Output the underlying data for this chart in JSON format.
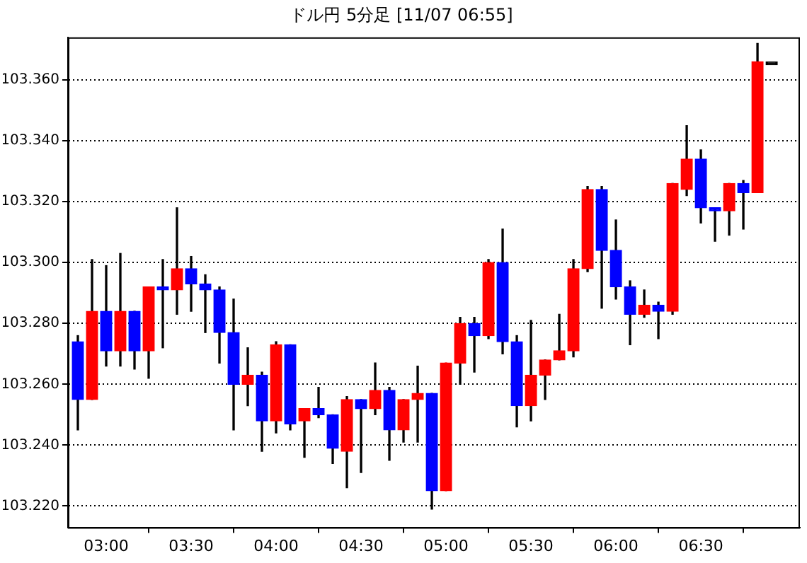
{
  "chart_data": {
    "type": "candlestick",
    "title": "ドル円 5分足 [11/07 06:55]",
    "x": [
      2.8333,
      2.9167,
      3,
      3.0833,
      3.1667,
      3.25,
      3.3333,
      3.4167,
      3.5,
      3.5833,
      3.6667,
      3.75,
      3.8333,
      3.9167,
      4,
      4.0833,
      4.1667,
      4.25,
      4.3333,
      4.4167,
      4.5,
      4.5833,
      4.6667,
      4.75,
      4.8333,
      4.9167,
      5,
      5.0833,
      5.1667,
      5.25,
      5.3333,
      5.4167,
      5.5,
      5.5833,
      5.6667,
      5.75,
      5.8333,
      5.9167,
      6,
      6.0833,
      6.1667,
      6.25,
      6.3333,
      6.4167,
      6.5,
      6.5833,
      6.6667,
      6.75,
      6.8333,
      6.9167
    ],
    "ohlc": [
      [
        103.274,
        103.276,
        103.245,
        103.255
      ],
      [
        103.255,
        103.301,
        103.255,
        103.284
      ],
      [
        103.284,
        103.299,
        103.266,
        103.271
      ],
      [
        103.271,
        103.303,
        103.266,
        103.284
      ],
      [
        103.284,
        103.284,
        103.265,
        103.271
      ],
      [
        103.271,
        103.292,
        103.262,
        103.292
      ],
      [
        103.292,
        103.301,
        103.272,
        103.291
      ],
      [
        103.291,
        103.318,
        103.283,
        103.298
      ],
      [
        103.298,
        103.302,
        103.284,
        103.293
      ],
      [
        103.293,
        103.296,
        103.277,
        103.291
      ],
      [
        103.291,
        103.292,
        103.267,
        103.277
      ],
      [
        103.277,
        103.288,
        103.245,
        103.26
      ],
      [
        103.26,
        103.272,
        103.253,
        103.263
      ],
      [
        103.263,
        103.264,
        103.238,
        103.248
      ],
      [
        103.248,
        103.274,
        103.244,
        103.273
      ],
      [
        103.273,
        103.273,
        103.245,
        103.247
      ],
      [
        103.248,
        103.252,
        103.236,
        103.252
      ],
      [
        103.252,
        103.259,
        103.249,
        103.25
      ],
      [
        103.25,
        103.25,
        103.234,
        103.239
      ],
      [
        103.238,
        103.256,
        103.226,
        103.255
      ],
      [
        103.255,
        103.255,
        103.231,
        103.252
      ],
      [
        103.252,
        103.267,
        103.25,
        103.258
      ],
      [
        103.258,
        103.259,
        103.235,
        103.245
      ],
      [
        103.245,
        103.255,
        103.241,
        103.255
      ],
      [
        103.255,
        103.266,
        103.241,
        103.257
      ],
      [
        103.257,
        103.257,
        103.219,
        103.225
      ],
      [
        103.225,
        103.267,
        103.225,
        103.267
      ],
      [
        103.267,
        103.282,
        103.26,
        103.28
      ],
      [
        103.28,
        103.282,
        103.264,
        103.276
      ],
      [
        103.276,
        103.301,
        103.275,
        103.3
      ],
      [
        103.3,
        103.311,
        103.27,
        103.274
      ],
      [
        103.274,
        103.276,
        103.246,
        103.253
      ],
      [
        103.253,
        103.281,
        103.248,
        103.263
      ],
      [
        103.263,
        103.268,
        103.255,
        103.268
      ],
      [
        103.268,
        103.283,
        103.268,
        103.271
      ],
      [
        103.271,
        103.301,
        103.269,
        103.298
      ],
      [
        103.298,
        103.325,
        103.297,
        103.324
      ],
      [
        103.324,
        103.325,
        103.285,
        103.304
      ],
      [
        103.304,
        103.314,
        103.288,
        103.292
      ],
      [
        103.292,
        103.294,
        103.273,
        103.283
      ],
      [
        103.283,
        103.291,
        103.282,
        103.286
      ],
      [
        103.286,
        103.287,
        103.275,
        103.284
      ],
      [
        103.284,
        103.326,
        103.283,
        103.326
      ],
      [
        103.324,
        103.345,
        103.322,
        103.334
      ],
      [
        103.334,
        103.337,
        103.313,
        103.318
      ],
      [
        103.318,
        103.318,
        103.307,
        103.317
      ],
      [
        103.317,
        103.326,
        103.309,
        103.326
      ],
      [
        103.326,
        103.327,
        103.311,
        103.323
      ],
      [
        103.323,
        103.372,
        103.323,
        103.366
      ],
      [
        103.365,
        103.365,
        103.365,
        103.365
      ]
    ],
    "colors": [
      "#0000ff",
      "#ff0000",
      "#0000ff",
      "#ff0000",
      "#0000ff",
      "#ff0000",
      "#0000ff",
      "#ff0000",
      "#0000ff",
      "#0000ff",
      "#0000ff",
      "#0000ff",
      "#ff0000",
      "#0000ff",
      "#ff0000",
      "#0000ff",
      "#ff0000",
      "#0000ff",
      "#0000ff",
      "#ff0000",
      "#0000ff",
      "#ff0000",
      "#0000ff",
      "#ff0000",
      "#ff0000",
      "#0000ff",
      "#ff0000",
      "#ff0000",
      "#0000ff",
      "#ff0000",
      "#0000ff",
      "#0000ff",
      "#ff0000",
      "#ff0000",
      "#ff0000",
      "#ff0000",
      "#ff0000",
      "#0000ff",
      "#0000ff",
      "#0000ff",
      "#ff0000",
      "#0000ff",
      "#ff0000",
      "#ff0000",
      "#0000ff",
      "#0000ff",
      "#ff0000",
      "#0000ff",
      "#ff0000",
      "#000000"
    ],
    "xlim": [
      2.775,
      7.083
    ],
    "xticks": [
      {
        "value": 3,
        "label": "03:00"
      },
      {
        "value": 3.5,
        "label": "03:30"
      },
      {
        "value": 4,
        "label": "04:00"
      },
      {
        "value": 4.5,
        "label": "04:30"
      },
      {
        "value": 5,
        "label": "05:00"
      },
      {
        "value": 5.5,
        "label": "05:30"
      },
      {
        "value": 6,
        "label": "06:00"
      },
      {
        "value": 6.5,
        "label": "06:30"
      }
    ],
    "ylim": [
      103.213,
      103.374
    ],
    "yticks": [
      {
        "value": 103.22,
        "label": "103.220"
      },
      {
        "value": 103.24,
        "label": "103.240"
      },
      {
        "value": 103.26,
        "label": "103.260"
      },
      {
        "value": 103.28,
        "label": "103.280"
      },
      {
        "value": 103.3,
        "label": "103.300"
      },
      {
        "value": 103.32,
        "label": "103.320"
      },
      {
        "value": 103.34,
        "label": "103.340"
      },
      {
        "value": 103.36,
        "label": "103.360"
      }
    ],
    "grid": "y"
  }
}
